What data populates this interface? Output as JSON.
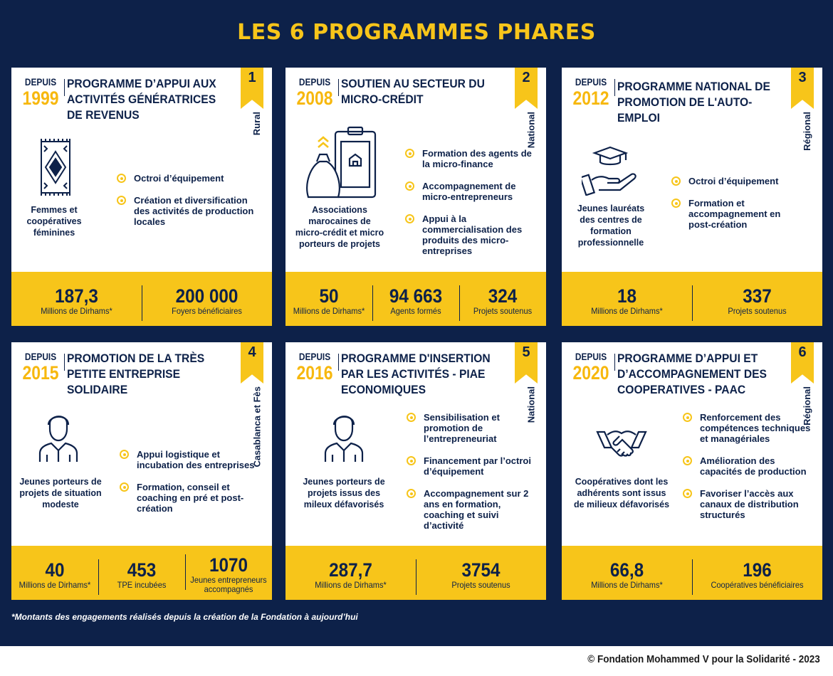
{
  "title": "LES 6 PROGRAMMES PHARES",
  "since_label": "DEPUIS",
  "colors": {
    "navy": "#0d2149",
    "accent": "#f7c51a"
  },
  "programs": [
    {
      "number": "1",
      "year": "1999",
      "title": "Programme d’appui aux activités génératrices de revenus",
      "scope": "Rural",
      "icon": "carpet-icon",
      "target": "Femmes et coopératives féminines",
      "items": [
        "Octroi d’équipement",
        "Création et diversification des activités de production locales"
      ],
      "stats": [
        {
          "value": "187,3",
          "label": "Millions de Dirhams*"
        },
        {
          "value": "200 000",
          "label": "Foyers bénéficiaires"
        }
      ]
    },
    {
      "number": "2",
      "year": "2008",
      "title": "Soutien au secteur du micro-crédit",
      "scope": "National",
      "icon": "money-bag-phone-icon",
      "target": "Associations marocaines de micro-crédit et micro porteurs de projets",
      "items": [
        "Formation des agents de la micro-finance",
        "Accompagnement de micro-entrepreneurs",
        "Appui à la commercialisation des produits des micro-entreprises"
      ],
      "stats": [
        {
          "value": "50",
          "label": "Millions de Dirhams*"
        },
        {
          "value": "94 663",
          "label": "Agents formés"
        },
        {
          "value": "324",
          "label": "Projets soutenus"
        }
      ]
    },
    {
      "number": "3",
      "year": "2012",
      "title": "Programme national de promotion de l'auto-emploi",
      "scope": "Régional",
      "icon": "graduation-hand-icon",
      "target": "Jeunes lauréats des centres de formation professionnelle",
      "items": [
        "Octroi d’équipement",
        "Formation et accompagnement en post-création"
      ],
      "stats": [
        {
          "value": "18",
          "label": "Millions de Dirhams*"
        },
        {
          "value": "337",
          "label": "Projets soutenus"
        }
      ]
    },
    {
      "number": "4",
      "year": "2015",
      "title": "Promotion de la très petite entreprise solidaire",
      "scope": "Casablanca et Fès",
      "icon": "person-icon",
      "target": "Jeunes porteurs de projets de situation modeste",
      "items": [
        "Appui logistique et incubation des entreprises",
        "Formation, conseil et coaching en pré et post-création"
      ],
      "stats": [
        {
          "value": "40",
          "label": "Millions de Dirhams*"
        },
        {
          "value": "453",
          "label": "TPE incubées"
        },
        {
          "value": "1070",
          "label": "Jeunes entrepreneurs accompagnés"
        }
      ]
    },
    {
      "number": "5",
      "year": "2016",
      "title": "Programme d'insertion par les activités - PIAE economiques",
      "scope": "National",
      "icon": "person-icon",
      "target": "Jeunes porteurs de projets issus des mileux défavorisés",
      "items": [
        "Sensibilisation et promotion de l’entrepreneuriat",
        "Financement par l’octroi d’équipement",
        "Accompagnement sur 2 ans en formation, coaching et suivi d’activité"
      ],
      "stats": [
        {
          "value": "287,7",
          "label": "Millions de Dirhams*"
        },
        {
          "value": "3754",
          "label": "Projets soutenus"
        }
      ]
    },
    {
      "number": "6",
      "year": "2020",
      "title": "Programme d’appui et d’accompagnement des cooperatives - PAAC",
      "scope": "Régional",
      "icon": "handshake-icon",
      "target": "Coopératives dont les adhérents sont issus de milieux défavorisés",
      "items": [
        "Renforcement des compétences techniques et managériales",
        "Amélioration des capacités de production",
        "Favoriser l’accès aux canaux de distribution structurés"
      ],
      "stats": [
        {
          "value": "66,8",
          "label": "Millions de Dirhams*"
        },
        {
          "value": "196",
          "label": "Coopératives bénéficiaires"
        }
      ]
    }
  ],
  "footnote": "*Montants des engagements réalisés depuis la création de la Fondation à aujourd’hui",
  "copyright": "© Fondation Mohammed V pour la Solidarité - 2023"
}
